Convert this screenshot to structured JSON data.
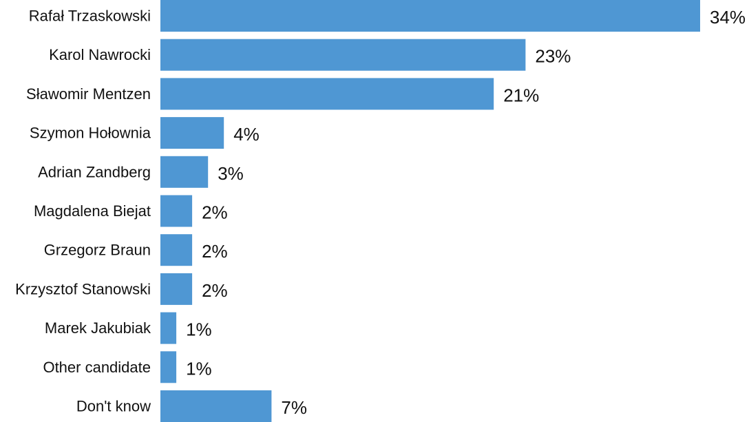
{
  "chart_data": {
    "type": "bar",
    "orientation": "horizontal",
    "categories": [
      "Rafał Trzaskowski",
      "Karol Nawrocki",
      "Sławomir Mentzen",
      "Szymon Hołownia",
      "Adrian Zandberg",
      "Magdalena Biejat",
      "Grzegorz Braun",
      "Krzysztof Stanowski",
      "Marek Jakubiak",
      "Other candidate",
      "Don't know"
    ],
    "values": [
      34,
      23,
      21,
      4,
      3,
      2,
      2,
      2,
      1,
      1,
      7
    ],
    "value_labels": [
      "34%",
      "23%",
      "21%",
      "4%",
      "3%",
      "2%",
      "2%",
      "2%",
      "1%",
      "1%",
      "7%"
    ],
    "unit": "%",
    "title": "",
    "xlabel": "",
    "ylabel": "",
    "xlim": [
      0,
      34
    ],
    "grid": false,
    "legend": "none",
    "bar_color": "#4f97d3"
  }
}
